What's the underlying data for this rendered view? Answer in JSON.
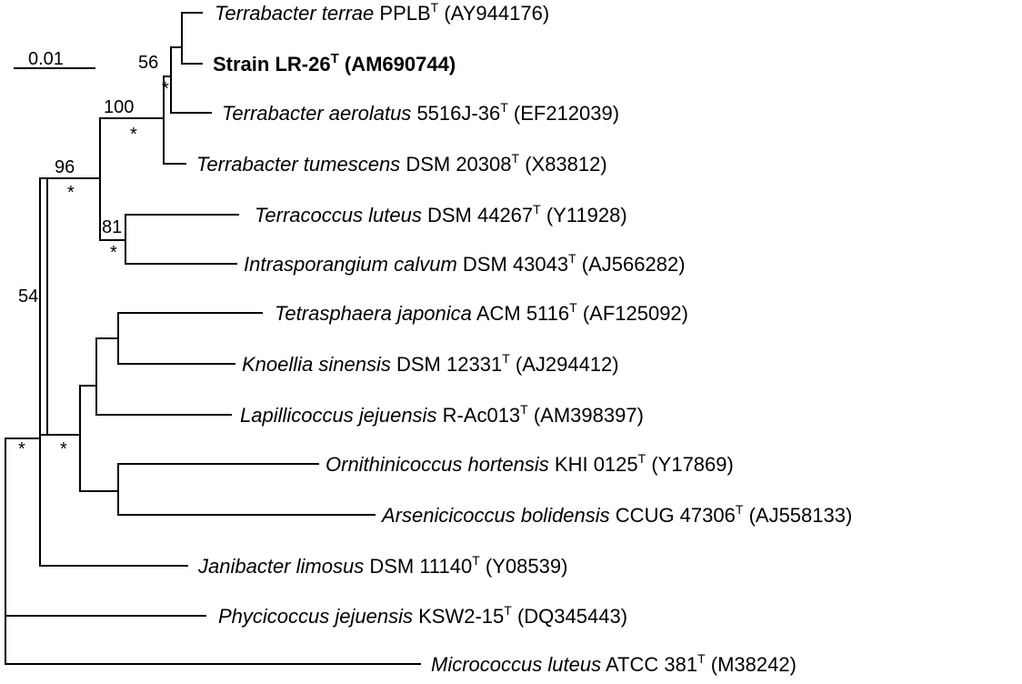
{
  "scale_bar": {
    "label": "0.01"
  },
  "leaves": [
    {
      "id": "terrae",
      "genus_species": "Terrabacter terrae",
      "strain": "PPLB",
      "superscript": "T",
      "accession": "(AY944176)",
      "bold": false
    },
    {
      "id": "lr26",
      "genus_species": "",
      "strain": "Strain LR-26",
      "superscript": "T",
      "accession": "(AM690744)",
      "bold": true
    },
    {
      "id": "aerolatus",
      "genus_species": "Terrabacter aerolatus",
      "strain": "5516J-36",
      "superscript": "T",
      "accession": "(EF212039)",
      "bold": false
    },
    {
      "id": "tumescens",
      "genus_species": "Terrabacter tumescens",
      "strain": "DSM 20308",
      "superscript": "T",
      "accession": "(X83812)",
      "bold": false
    },
    {
      "id": "terracoccus",
      "genus_species": "Terracoccus luteus",
      "strain": "DSM 44267",
      "superscript": "T",
      "accession": "(Y11928)",
      "bold": false
    },
    {
      "id": "intrasp",
      "genus_species": "Intrasporangium calvum",
      "strain": "DSM 43043",
      "superscript": "T",
      "accession": "(AJ566282)",
      "bold": false
    },
    {
      "id": "tetrasphaera",
      "genus_species": "Tetrasphaera japonica",
      "strain": "ACM 5116",
      "superscript": "T",
      "accession": "(AF125092)",
      "bold": false
    },
    {
      "id": "knoellia",
      "genus_species": "Knoellia sinensis",
      "strain": "DSM 12331",
      "superscript": "T",
      "accession": "(AJ294412)",
      "bold": false
    },
    {
      "id": "lapillicoccus",
      "genus_species": "Lapillicoccus jejuensis",
      "strain": "R-Ac013",
      "superscript": "T",
      "accession": "(AM398397)",
      "bold": false
    },
    {
      "id": "ornithini",
      "genus_species": "Ornithinicoccus hortensis",
      "strain": "KHI 0125",
      "superscript": "T",
      "accession": "(Y17869)",
      "bold": false
    },
    {
      "id": "arsenici",
      "genus_species": "Arsenicicoccus bolidensis",
      "strain": "CCUG 47306",
      "superscript": "T",
      "accession": "(AJ558133)",
      "bold": false
    },
    {
      "id": "janibacter",
      "genus_species": "Janibacter limosus",
      "strain": "DSM 11140",
      "superscript": "T",
      "accession": "(Y08539)",
      "bold": false
    },
    {
      "id": "phycicoccus",
      "genus_species": "Phycicoccus jejuensis",
      "strain": "KSW2-15",
      "superscript": "T",
      "accession": "(DQ345443)",
      "bold": false
    },
    {
      "id": "micrococcus",
      "genus_species": "Micrococcus luteus",
      "strain": "ATCC 381",
      "superscript": "T",
      "accession": "(M38242)",
      "bold": false
    }
  ],
  "bootstrap_values": {
    "terrae_lr26": "56",
    "terrabacter_clade": "100",
    "terrabacter_terracoccus": "96",
    "terracoccus_intrasp": "81",
    "main_clade": "54"
  },
  "star_marker": "*"
}
